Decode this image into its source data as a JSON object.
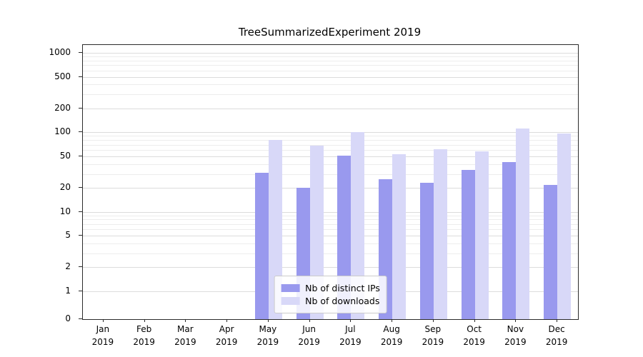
{
  "chart_data": {
    "type": "bar",
    "title": "TreeSummarizedExperiment 2019",
    "categories": [
      "Jan",
      "Feb",
      "Mar",
      "Apr",
      "May",
      "Jun",
      "Jul",
      "Aug",
      "Sep",
      "Oct",
      "Nov",
      "Dec"
    ],
    "year_label": "2019",
    "series": [
      {
        "name": "Nb of distinct IPs",
        "color": "#9999ee",
        "values": [
          0,
          0,
          0,
          0,
          31,
          20,
          51,
          26,
          23,
          34,
          42,
          22
        ]
      },
      {
        "name": "Nb of downloads",
        "color": "#d8d8f8",
        "values": [
          0,
          0,
          0,
          0,
          80,
          68,
          100,
          53,
          62,
          58,
          113,
          97
        ]
      }
    ],
    "yscale": "symlog",
    "yticks": [
      0,
      1,
      2,
      5,
      10,
      20,
      50,
      100,
      200,
      500,
      1000
    ],
    "ylim": [
      0,
      1250
    ],
    "grid": "on",
    "legend_position": "lower center"
  },
  "colors": {
    "grid_major": "#dcdcdc",
    "grid_minor": "#ededed",
    "axis": "#2b2b2b"
  }
}
